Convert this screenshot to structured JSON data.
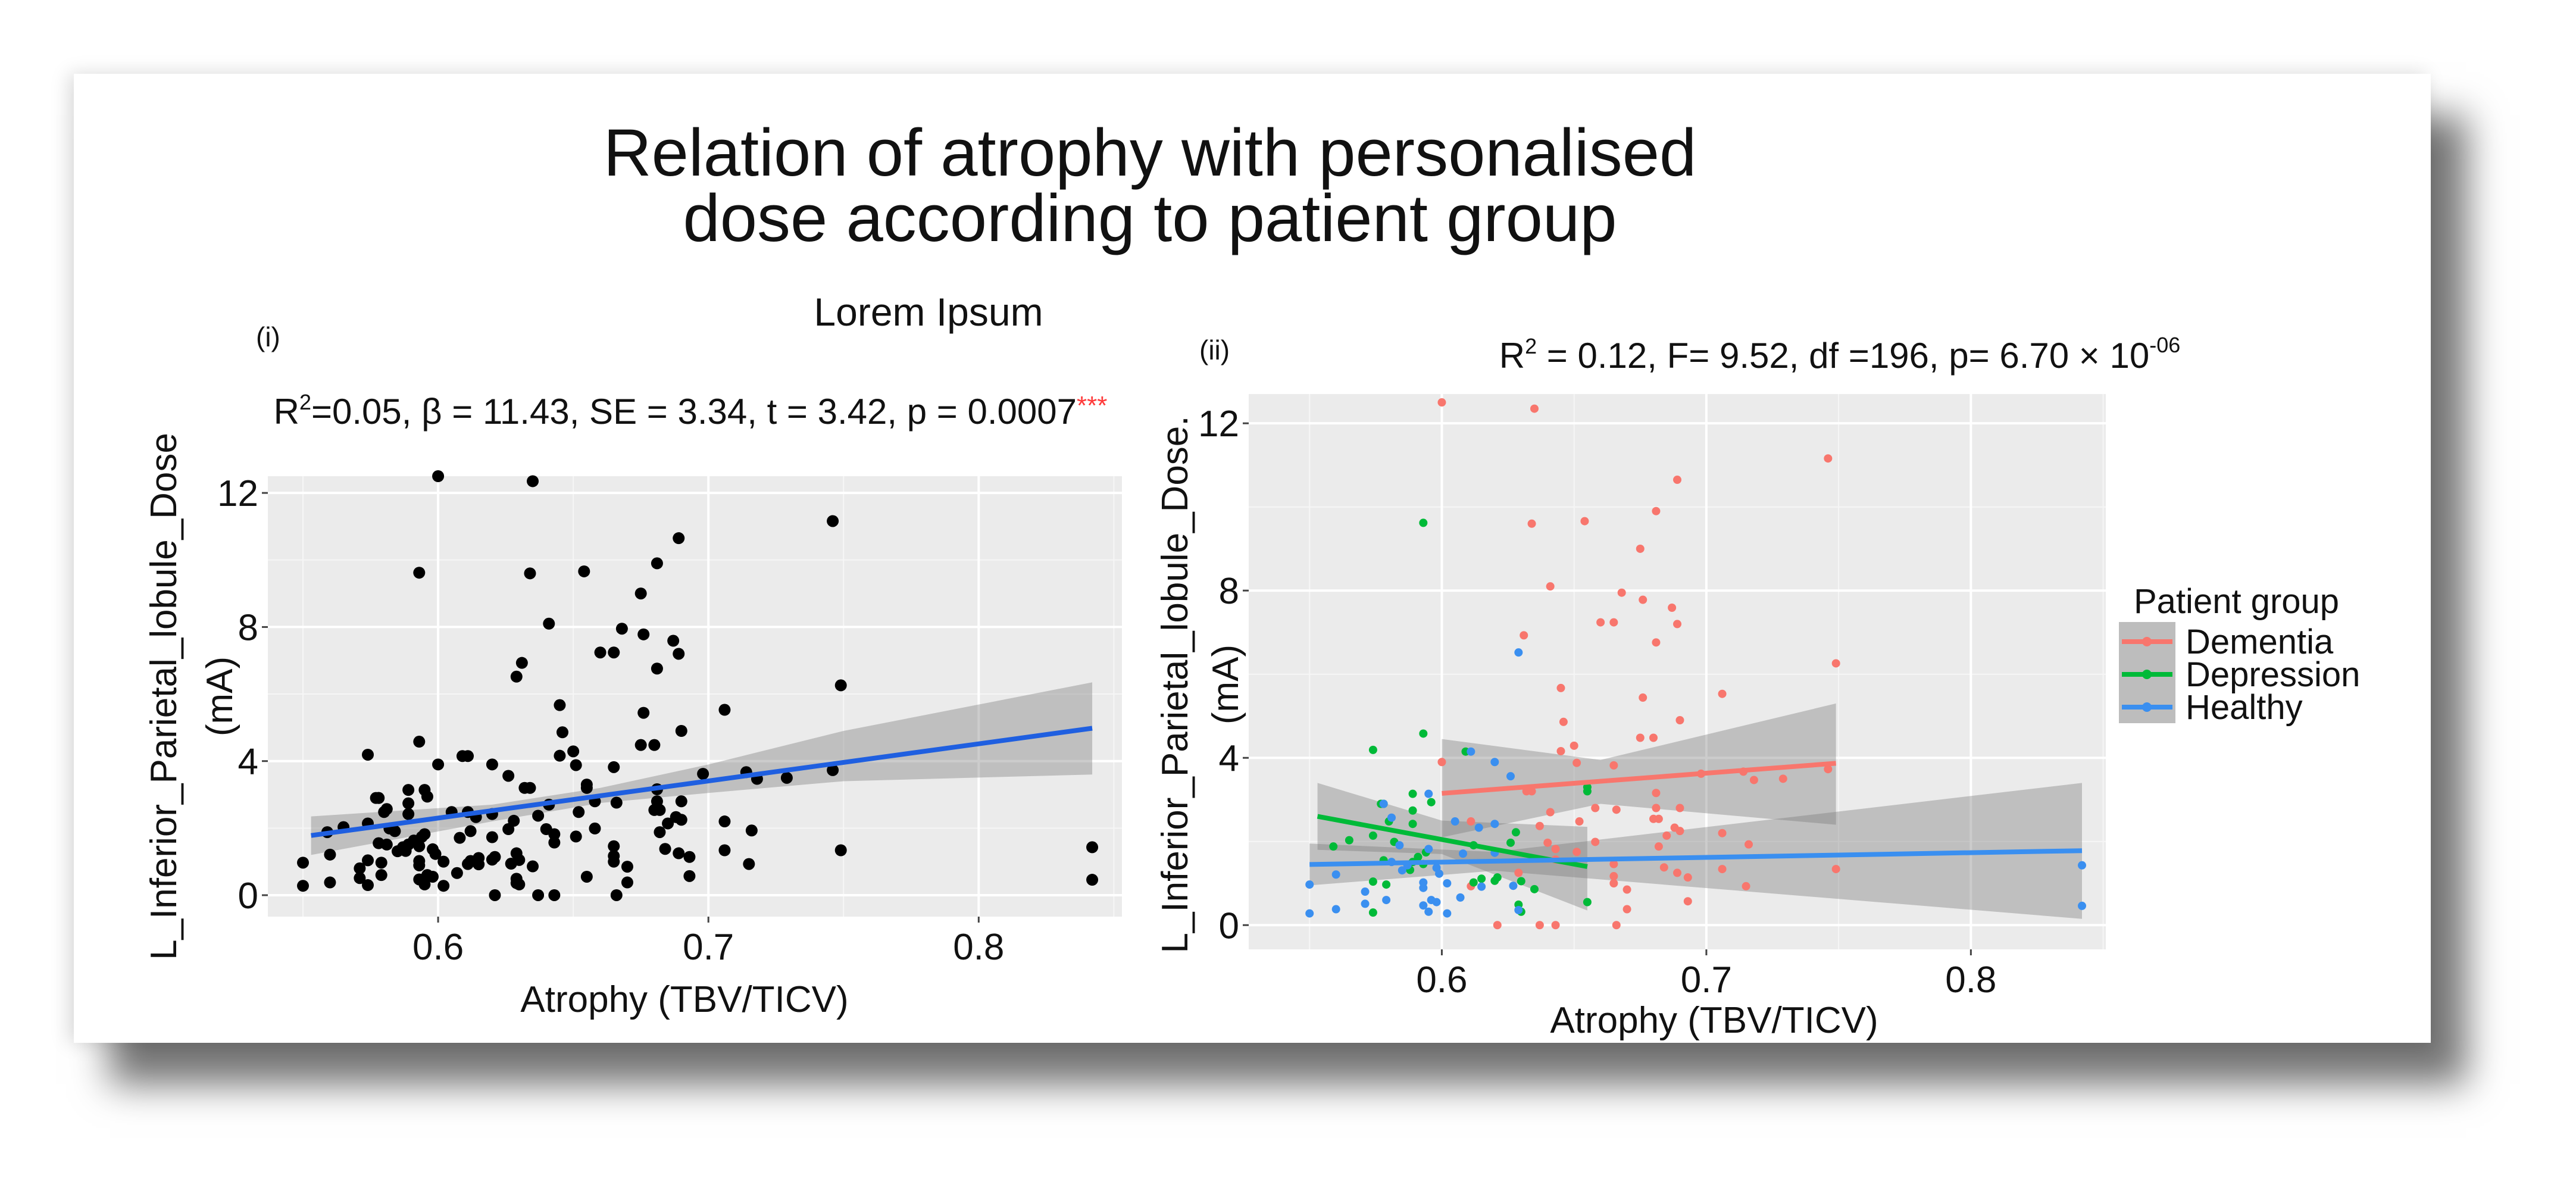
{
  "figure": {
    "title_line1": "Relation of atrophy with personalised",
    "title_line2": "dose according to patient group",
    "subtitle": "Lorem Ipsum"
  },
  "chart_data": [
    {
      "panel_label": "(i)",
      "type": "scatter",
      "stats": {
        "r": "R",
        "sup": "2",
        "text": "=0.05, β = 11.43, SE = 3.34, t = 3.42, p = 0.0007",
        "stars": "***"
      },
      "xlabel": "Atrophy (TBV/TICV)",
      "ylabel_line1": "L_Inferior_Parietal_lobule_Dose",
      "ylabel_line2": "(mA)",
      "xlim": [
        0.537,
        0.853
      ],
      "ylim": [
        -0.64,
        12.5
      ],
      "xticks": [
        0.6,
        0.7,
        0.8
      ],
      "xtick_labels": [
        "0.6",
        "0.7",
        "0.8"
      ],
      "yticks": [
        0,
        4,
        8,
        12
      ],
      "ytick_labels": [
        "0",
        "4",
        "8",
        "12"
      ],
      "point_color": "#000000",
      "points_source": "all groups of panel (ii)",
      "fit": {
        "color": "#1f5fe0",
        "x": [
          0.553,
          0.842
        ],
        "y": [
          1.78,
          4.98
        ],
        "band": [
          [
            0.553,
            1.2,
            2.35
          ],
          [
            0.62,
            2.2,
            2.7
          ],
          [
            0.66,
            2.75,
            3.2
          ],
          [
            0.7,
            3.05,
            3.9
          ],
          [
            0.75,
            3.4,
            4.9
          ],
          [
            0.842,
            3.6,
            6.35
          ]
        ]
      },
      "grid": true
    },
    {
      "panel_label": "(ii)",
      "type": "scatter",
      "stats": {
        "r": "R",
        "sup": "2",
        "text": " = 0.12, F= 9.52, df =196, p= 6.70 × 10",
        "exp": "-06"
      },
      "xlabel": "Atrophy (TBV/TICV)",
      "ylabel_line1": "L_Inferior_Parietal_lobule_Dose.",
      "ylabel_line2": "(mA)",
      "xlim": [
        0.527,
        0.851
      ],
      "ylim": [
        -0.58,
        12.7
      ],
      "xticks": [
        0.6,
        0.7,
        0.8
      ],
      "xtick_labels": [
        "0.6",
        "0.7",
        "0.8"
      ],
      "yticks": [
        0,
        4,
        8,
        12
      ],
      "ytick_labels": [
        "0",
        "4",
        "8",
        "12"
      ],
      "legend_title": "Patient group",
      "legend_position": "right",
      "grid": true,
      "series": [
        {
          "name": "Dementia",
          "color": "#f8766d",
          "fit": {
            "x": [
              0.6,
              0.749
            ],
            "y": [
              3.15,
              3.87
            ],
            "band": [
              [
                0.6,
                2.1,
                4.45
              ],
              [
                0.66,
                2.9,
                3.95
              ],
              [
                0.749,
                2.4,
                5.3
              ]
            ]
          },
          "points": [
            [
              0.6,
              12.5
            ],
            [
              0.635,
              12.35
            ],
            [
              0.746,
              11.16
            ],
            [
              0.689,
              10.65
            ],
            [
              0.681,
              9.9
            ],
            [
              0.634,
              9.6
            ],
            [
              0.654,
              9.66
            ],
            [
              0.675,
              9.0
            ],
            [
              0.641,
              8.1
            ],
            [
              0.668,
              7.95
            ],
            [
              0.676,
              7.78
            ],
            [
              0.687,
              7.59
            ],
            [
              0.66,
              7.24
            ],
            [
              0.665,
              7.24
            ],
            [
              0.689,
              7.2
            ],
            [
              0.631,
              6.93
            ],
            [
              0.681,
              6.76
            ],
            [
              0.749,
              6.26
            ],
            [
              0.645,
              5.67
            ],
            [
              0.706,
              5.53
            ],
            [
              0.676,
              5.44
            ],
            [
              0.646,
              4.86
            ],
            [
              0.69,
              4.9
            ],
            [
              0.65,
              4.29
            ],
            [
              0.675,
              4.48
            ],
            [
              0.68,
              4.48
            ],
            [
              0.645,
              4.16
            ],
            [
              0.651,
              3.88
            ],
            [
              0.6,
              3.9
            ],
            [
              0.665,
              3.82
            ],
            [
              0.698,
              3.62
            ],
            [
              0.714,
              3.67
            ],
            [
              0.746,
              3.73
            ],
            [
              0.718,
              3.47
            ],
            [
              0.729,
              3.5
            ],
            [
              0.632,
              3.2
            ],
            [
              0.634,
              3.2
            ],
            [
              0.681,
              3.16
            ],
            [
              0.658,
              2.8
            ],
            [
              0.666,
              2.76
            ],
            [
              0.681,
              2.8
            ],
            [
              0.69,
              2.8
            ],
            [
              0.641,
              2.7
            ],
            [
              0.68,
              2.54
            ],
            [
              0.682,
              2.54
            ],
            [
              0.611,
              2.48
            ],
            [
              0.652,
              2.48
            ],
            [
              0.637,
              2.37
            ],
            [
              0.688,
              2.33
            ],
            [
              0.69,
              2.25
            ],
            [
              0.685,
              2.14
            ],
            [
              0.706,
              2.2
            ],
            [
              0.64,
              1.97
            ],
            [
              0.658,
              1.99
            ],
            [
              0.682,
              1.88
            ],
            [
              0.716,
              1.93
            ],
            [
              0.643,
              1.82
            ],
            [
              0.651,
              1.75
            ],
            [
              0.665,
              1.46
            ],
            [
              0.643,
              1.57
            ],
            [
              0.684,
              1.38
            ],
            [
              0.706,
              1.34
            ],
            [
              0.749,
              1.34
            ],
            [
              0.689,
              1.25
            ],
            [
              0.665,
              1.17
            ],
            [
              0.693,
              1.14
            ],
            [
              0.665,
              1.0
            ],
            [
              0.611,
              0.93
            ],
            [
              0.715,
              0.93
            ],
            [
              0.67,
              0.85
            ],
            [
              0.693,
              0.57
            ],
            [
              0.67,
              0.38
            ],
            [
              0.621,
              0.0
            ],
            [
              0.637,
              0.0
            ],
            [
              0.643,
              0.0
            ],
            [
              0.666,
              0.0
            ],
            [
              0.629,
              1.25
            ]
          ]
        },
        {
          "name": "Depression",
          "color": "#00ba38",
          "fit": {
            "x": [
              0.553,
              0.655
            ],
            "y": [
              2.6,
              1.4
            ],
            "band": [
              [
                0.553,
                1.8,
                3.4
              ],
              [
                0.6,
                1.7,
                2.5
              ],
              [
                0.655,
                0.35,
                2.35
              ]
            ]
          },
          "points": [
            [
              0.593,
              9.62
            ],
            [
              0.593,
              4.58
            ],
            [
              0.574,
              4.19
            ],
            [
              0.609,
              4.15
            ],
            [
              0.589,
              3.14
            ],
            [
              0.596,
              2.94
            ],
            [
              0.655,
              3.3
            ],
            [
              0.577,
              2.9
            ],
            [
              0.578,
              2.9
            ],
            [
              0.589,
              2.74
            ],
            [
              0.58,
              2.48
            ],
            [
              0.589,
              2.42
            ],
            [
              0.628,
              2.22
            ],
            [
              0.574,
              2.14
            ],
            [
              0.565,
              2.03
            ],
            [
              0.582,
              1.99
            ],
            [
              0.626,
              1.97
            ],
            [
              0.559,
              1.88
            ],
            [
              0.594,
              1.74
            ],
            [
              0.612,
              1.91
            ],
            [
              0.591,
              1.63
            ],
            [
              0.578,
              1.55
            ],
            [
              0.589,
              1.51
            ],
            [
              0.593,
              1.46
            ],
            [
              0.588,
              1.32
            ],
            [
              0.615,
              1.11
            ],
            [
              0.621,
              1.14
            ],
            [
              0.574,
              1.04
            ],
            [
              0.579,
              0.97
            ],
            [
              0.612,
              1.02
            ],
            [
              0.62,
              1.06
            ],
            [
              0.63,
              1.05
            ],
            [
              0.635,
              0.86
            ],
            [
              0.655,
              0.55
            ],
            [
              0.629,
              0.49
            ],
            [
              0.574,
              0.3
            ],
            [
              0.63,
              0.32
            ],
            [
              0.655,
              3.2
            ]
          ]
        },
        {
          "name": "Healthy",
          "color": "#3a8ff0",
          "fit": {
            "x": [
              0.55,
              0.842
            ],
            "y": [
              1.45,
              1.78
            ],
            "band": [
              [
                0.55,
                0.95,
                1.95
              ],
              [
                0.62,
                1.3,
                1.75
              ],
              [
                0.842,
                0.15,
                3.4
              ]
            ]
          },
          "points": [
            [
              0.629,
              6.52
            ],
            [
              0.611,
              4.15
            ],
            [
              0.62,
              3.9
            ],
            [
              0.626,
              3.56
            ],
            [
              0.595,
              3.14
            ],
            [
              0.578,
              2.9
            ],
            [
              0.581,
              2.57
            ],
            [
              0.605,
              2.48
            ],
            [
              0.62,
              2.42
            ],
            [
              0.614,
              2.33
            ],
            [
              0.584,
              1.91
            ],
            [
              0.595,
              1.82
            ],
            [
              0.608,
              1.71
            ],
            [
              0.62,
              1.73
            ],
            [
              0.581,
              1.51
            ],
            [
              0.587,
              1.43
            ],
            [
              0.585,
              1.31
            ],
            [
              0.598,
              1.37
            ],
            [
              0.599,
              1.23
            ],
            [
              0.56,
              1.21
            ],
            [
              0.602,
              1.0
            ],
            [
              0.55,
              0.97
            ],
            [
              0.593,
              1.02
            ],
            [
              0.593,
              0.89
            ],
            [
              0.615,
              0.92
            ],
            [
              0.627,
              0.94
            ],
            [
              0.571,
              0.8
            ],
            [
              0.607,
              0.66
            ],
            [
              0.579,
              0.6
            ],
            [
              0.596,
              0.6
            ],
            [
              0.598,
              0.55
            ],
            [
              0.571,
              0.51
            ],
            [
              0.593,
              0.47
            ],
            [
              0.595,
              0.32
            ],
            [
              0.56,
              0.38
            ],
            [
              0.602,
              0.28
            ],
            [
              0.55,
              0.28
            ],
            [
              0.629,
              0.36
            ],
            [
              0.842,
              1.43
            ],
            [
              0.842,
              0.46
            ]
          ]
        }
      ]
    }
  ]
}
